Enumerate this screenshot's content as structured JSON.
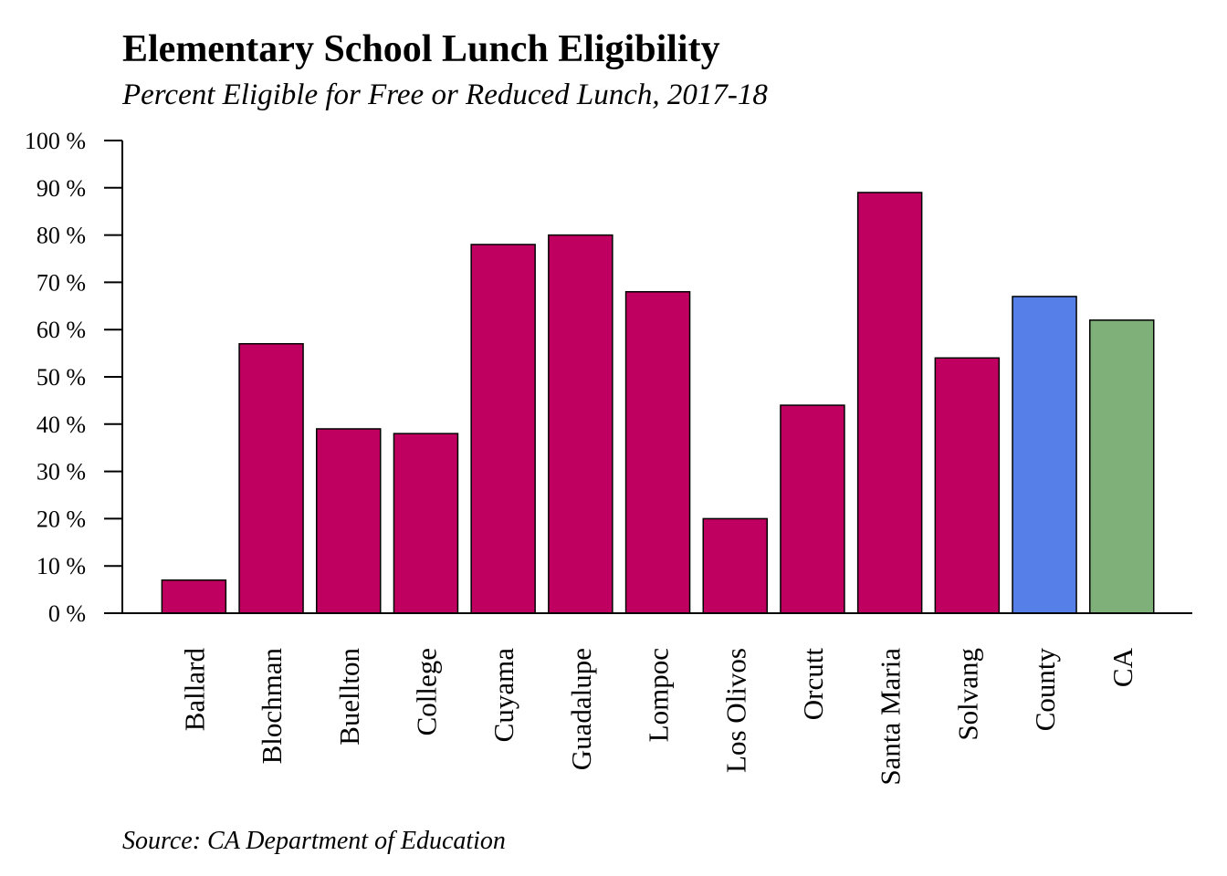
{
  "title": "Elementary School Lunch Eligibility",
  "subtitle": "Percent Eligible for Free or Reduced Lunch, 2017-18",
  "source": "Source: CA Department of Education",
  "chart_data": {
    "type": "bar",
    "title": "Elementary School Lunch Eligibility",
    "subtitle": "Percent Eligible for Free or Reduced Lunch, 2017-18",
    "xlabel": "",
    "ylabel": "",
    "categories": [
      "Ballard",
      "Blochman",
      "Buellton",
      "College",
      "Cuyama",
      "Guadalupe",
      "Lompoc",
      "Los Olivos",
      "Orcutt",
      "Santa Maria",
      "Solvang",
      "County",
      "CA"
    ],
    "values": [
      7,
      57,
      39,
      38,
      78,
      80,
      68,
      20,
      44,
      89,
      54,
      67,
      62
    ],
    "bar_colors": [
      "#bf0060",
      "#bf0060",
      "#bf0060",
      "#bf0060",
      "#bf0060",
      "#bf0060",
      "#bf0060",
      "#bf0060",
      "#bf0060",
      "#bf0060",
      "#bf0060",
      "#5680e8",
      "#7fb07a"
    ],
    "ylim": [
      0,
      100
    ],
    "yticks": [
      0,
      10,
      20,
      30,
      40,
      50,
      60,
      70,
      80,
      90,
      100
    ],
    "ytick_labels": [
      "0 %",
      "10 %",
      "20 %",
      "30 %",
      "40 %",
      "50 %",
      "60 %",
      "70 %",
      "80 %",
      "90 %",
      "100 %"
    ],
    "grid": false,
    "legend": "none"
  }
}
